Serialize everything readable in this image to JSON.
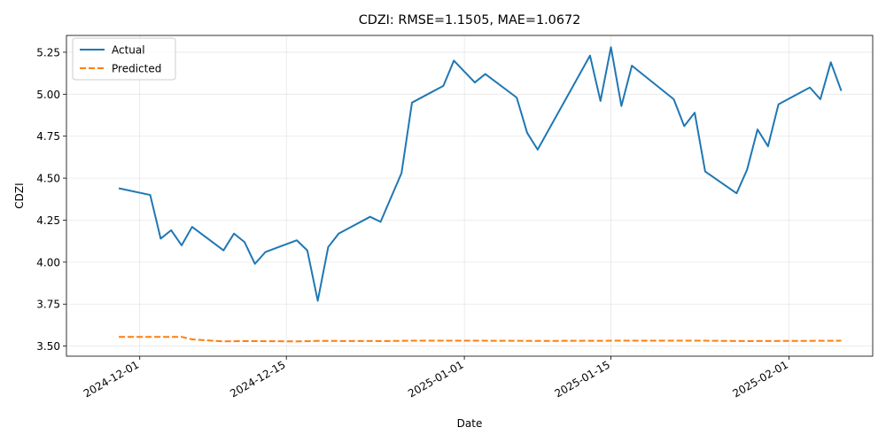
{
  "chart_data": {
    "type": "line",
    "title": "CDZI: RMSE=1.1505, MAE=1.0672",
    "xlabel": "Date",
    "ylabel": "CDZI",
    "xlim": [
      "2024-11-24",
      "2025-02-09"
    ],
    "ylim": [
      3.44,
      5.35
    ],
    "grid": true,
    "legend": "top-left",
    "x_ticks": [
      "2024-12-01",
      "2024-12-15",
      "2025-01-01",
      "2025-01-15",
      "2025-02-01"
    ],
    "y_ticks": [
      "3.50",
      "3.75",
      "4.00",
      "4.25",
      "4.50",
      "4.75",
      "5.00",
      "5.25"
    ],
    "series": [
      {
        "name": "Actual",
        "color": "#1f77b4",
        "style": "solid",
        "points": [
          [
            "2024-11-29",
            4.44
          ],
          [
            "2024-12-02",
            4.4
          ],
          [
            "2024-12-03",
            4.14
          ],
          [
            "2024-12-04",
            4.19
          ],
          [
            "2024-12-05",
            4.1
          ],
          [
            "2024-12-06",
            4.21
          ],
          [
            "2024-12-09",
            4.07
          ],
          [
            "2024-12-10",
            4.17
          ],
          [
            "2024-12-11",
            4.12
          ],
          [
            "2024-12-12",
            3.99
          ],
          [
            "2024-12-13",
            4.06
          ],
          [
            "2024-12-16",
            4.13
          ],
          [
            "2024-12-17",
            4.07
          ],
          [
            "2024-12-18",
            3.77
          ],
          [
            "2024-12-19",
            4.09
          ],
          [
            "2024-12-20",
            4.17
          ],
          [
            "2024-12-23",
            4.27
          ],
          [
            "2024-12-24",
            4.24
          ],
          [
            "2024-12-26",
            4.53
          ],
          [
            "2024-12-27",
            4.95
          ],
          [
            "2024-12-30",
            5.05
          ],
          [
            "2024-12-31",
            5.2
          ],
          [
            "2025-01-02",
            5.07
          ],
          [
            "2025-01-03",
            5.12
          ],
          [
            "2025-01-06",
            4.98
          ],
          [
            "2025-01-07",
            4.77
          ],
          [
            "2025-01-08",
            4.67
          ],
          [
            "2025-01-13",
            5.23
          ],
          [
            "2025-01-14",
            4.96
          ],
          [
            "2025-01-15",
            5.28
          ],
          [
            "2025-01-16",
            4.93
          ],
          [
            "2025-01-17",
            5.17
          ],
          [
            "2025-01-21",
            4.97
          ],
          [
            "2025-01-22",
            4.81
          ],
          [
            "2025-01-23",
            4.89
          ],
          [
            "2025-01-24",
            4.54
          ],
          [
            "2025-01-27",
            4.41
          ],
          [
            "2025-01-28",
            4.55
          ],
          [
            "2025-01-29",
            4.79
          ],
          [
            "2025-01-30",
            4.69
          ],
          [
            "2025-01-31",
            4.94
          ],
          [
            "2025-02-03",
            5.04
          ],
          [
            "2025-02-04",
            4.97
          ],
          [
            "2025-02-05",
            5.19
          ],
          [
            "2025-02-06",
            5.02
          ]
        ]
      },
      {
        "name": "Predicted",
        "color": "#ff7f0e",
        "style": "dashed",
        "points": [
          [
            "2024-11-29",
            3.555
          ],
          [
            "2024-12-02",
            3.555
          ],
          [
            "2024-12-05",
            3.555
          ],
          [
            "2024-12-06",
            3.54
          ],
          [
            "2024-12-09",
            3.528
          ],
          [
            "2024-12-11",
            3.53
          ],
          [
            "2024-12-16",
            3.528
          ],
          [
            "2024-12-18",
            3.531
          ],
          [
            "2024-12-24",
            3.53
          ],
          [
            "2024-12-27",
            3.532
          ],
          [
            "2025-01-03",
            3.532
          ],
          [
            "2025-01-08",
            3.531
          ],
          [
            "2025-01-15",
            3.532
          ],
          [
            "2025-01-24",
            3.532
          ],
          [
            "2025-01-28",
            3.53
          ],
          [
            "2025-02-06",
            3.532
          ]
        ]
      }
    ]
  }
}
